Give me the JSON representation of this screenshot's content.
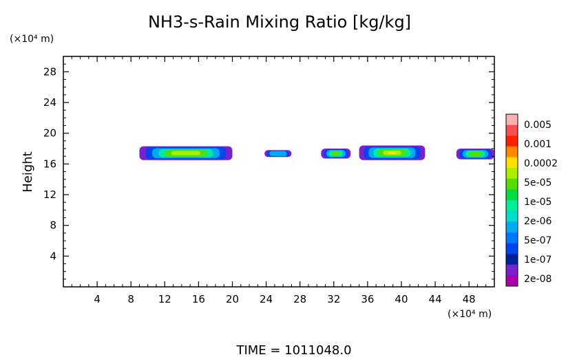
{
  "chart_data": {
    "type": "heatmap",
    "title": "NH3-s-Rain Mixing Ratio [kg/kg]",
    "ylabel": "Height",
    "xlabel": "",
    "x_unit": "(×10⁴ m)",
    "y_unit": "(×10⁴ m)",
    "xlim": [
      0,
      51
    ],
    "ylim": [
      0,
      30
    ],
    "x_ticks": [
      4,
      8,
      12,
      16,
      20,
      24,
      28,
      32,
      36,
      40,
      44,
      48
    ],
    "y_ticks": [
      4,
      8,
      12,
      16,
      20,
      24,
      28
    ],
    "grid": false,
    "legend": "right",
    "colorbar": {
      "labels": [
        "0.005",
        "0.001",
        "0.0002",
        "5e-05",
        "1e-05",
        "2e-06",
        "5e-07",
        "1e-07",
        "2e-08"
      ],
      "colors_top_to_bottom": [
        "#f9b0b0",
        "#f85050",
        "#ff2000",
        "#ff8800",
        "#ffe000",
        "#aaee00",
        "#55dd00",
        "#00dd44",
        "#00ee99",
        "#00ddcc",
        "#00aaee",
        "#0077ff",
        "#0044ee",
        "#002299",
        "#7722cc",
        "#aa00aa"
      ]
    },
    "footer": "TIME = 1011048.0",
    "regions": [
      {
        "x0": 9.0,
        "x1": 20.0,
        "y0": 16.5,
        "y1": 18.3,
        "peak": "5e-05"
      },
      {
        "x0": 23.8,
        "x1": 27.0,
        "y0": 16.9,
        "y1": 17.8,
        "peak": "2e-06"
      },
      {
        "x0": 30.5,
        "x1": 34.0,
        "y0": 16.7,
        "y1": 18.0,
        "peak": "1e-05"
      },
      {
        "x0": 35.0,
        "x1": 42.8,
        "y0": 16.5,
        "y1": 18.4,
        "peak": "0.0002"
      },
      {
        "x0": 46.5,
        "x1": 51.0,
        "y0": 16.6,
        "y1": 18.0,
        "peak": "1e-05"
      }
    ]
  }
}
